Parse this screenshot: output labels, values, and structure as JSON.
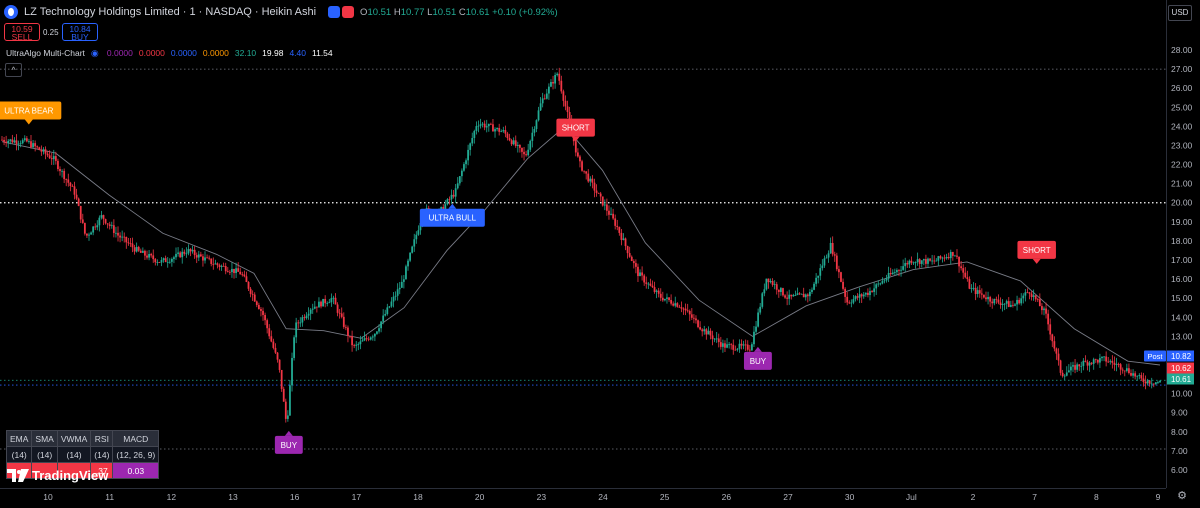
{
  "header": {
    "title": "LZ Technology Holdings Limited · 1 · NASDAQ · Heikin Ashi",
    "ohlc": [
      {
        "k": "O",
        "v": "10.51"
      },
      {
        "k": "H",
        "v": "10.77"
      },
      {
        "k": "L",
        "v": "10.51"
      },
      {
        "k": "C",
        "v": "10.61"
      },
      {
        "k": "",
        "v": "+0.10 (+0.92%)"
      }
    ]
  },
  "trade": {
    "sell_price": "10.59",
    "sell_label": "SELL",
    "spread": "0.25",
    "buy_price": "10.84",
    "buy_label": "BUY"
  },
  "indicator": {
    "name": "UltraAlgo Multi-Chart",
    "values": [
      {
        "text": "0.0000",
        "color": "#9c27b0"
      },
      {
        "text": "0.0000",
        "color": "#f23645"
      },
      {
        "text": "0.0000",
        "color": "#2962ff"
      },
      {
        "text": "0.0000",
        "color": "#ff9800"
      },
      {
        "text": "32.10",
        "color": "#22ab94"
      },
      {
        "text": "19.98",
        "color": "#ffffff"
      },
      {
        "text": "4.40",
        "color": "#2962ff"
      },
      {
        "text": "11.54",
        "color": "#ffffff"
      }
    ]
  },
  "currency": "USD",
  "table": {
    "headers": [
      "EMA",
      "SMA",
      "VWMA",
      "RSI",
      "MACD"
    ],
    "params": [
      "(14)",
      "(14)",
      "(14)",
      "(14)",
      "(12, 26, 9)"
    ],
    "values": [
      {
        "text": "",
        "bg": "#f23645"
      },
      {
        "text": "",
        "bg": "#f23645"
      },
      {
        "text": "",
        "bg": "#f23645"
      },
      {
        "text": ".37",
        "bg": "#f23645"
      },
      {
        "text": "0.03",
        "bg": "#9c27b0"
      }
    ]
  },
  "logo_text": "TradingView",
  "chart_data": {
    "type": "candlestick",
    "y_axis": {
      "range": [
        5.6,
        28.0
      ],
      "ticks": [
        "6.00",
        "7.00",
        "8.00",
        "9.00",
        "10.00",
        "11.00",
        "12.00",
        "13.00",
        "14.00",
        "15.00",
        "16.00",
        "17.00",
        "18.00",
        "19.00",
        "20.00",
        "21.00",
        "22.00",
        "23.00",
        "24.00",
        "25.00",
        "26.00",
        "27.00",
        "28.00"
      ]
    },
    "x_ticks": [
      "10",
      "11",
      "12",
      "13",
      "16",
      "17",
      "18",
      "20",
      "23",
      "24",
      "25",
      "26",
      "27",
      "30",
      "Jul",
      "2",
      "7",
      "8",
      "9"
    ],
    "price_path": [
      {
        "x": 0,
        "y": 23.3
      },
      {
        "x": 0.5,
        "y": 23.2
      },
      {
        "x": 1,
        "y": 22.3
      },
      {
        "x": 1.4,
        "y": 20.5
      },
      {
        "x": 1.6,
        "y": 18.2
      },
      {
        "x": 1.9,
        "y": 19.3
      },
      {
        "x": 2.2,
        "y": 18.3
      },
      {
        "x": 2.6,
        "y": 17.4
      },
      {
        "x": 3,
        "y": 16.9
      },
      {
        "x": 3.3,
        "y": 17.2
      },
      {
        "x": 3.5,
        "y": 17.5
      },
      {
        "x": 4,
        "y": 16.8
      },
      {
        "x": 4.5,
        "y": 16.3
      },
      {
        "x": 4.9,
        "y": 14.2
      },
      {
        "x": 5.2,
        "y": 11.5
      },
      {
        "x": 5.35,
        "y": 8.3
      },
      {
        "x": 5.5,
        "y": 13.5
      },
      {
        "x": 5.8,
        "y": 14.5
      },
      {
        "x": 6.2,
        "y": 15.0
      },
      {
        "x": 6.6,
        "y": 12.4
      },
      {
        "x": 7.0,
        "y": 13.2
      },
      {
        "x": 7.5,
        "y": 15.8
      },
      {
        "x": 7.9,
        "y": 19.6
      },
      {
        "x": 8.2,
        "y": 19.5
      },
      {
        "x": 8.5,
        "y": 20.6
      },
      {
        "x": 8.9,
        "y": 24.2
      },
      {
        "x": 9.4,
        "y": 23.7
      },
      {
        "x": 9.8,
        "y": 22.4
      },
      {
        "x": 10.1,
        "y": 25.3
      },
      {
        "x": 10.4,
        "y": 26.8
      },
      {
        "x": 10.8,
        "y": 22.1
      },
      {
        "x": 11.2,
        "y": 20.2
      },
      {
        "x": 11.5,
        "y": 18.8
      },
      {
        "x": 11.9,
        "y": 16.3
      },
      {
        "x": 12.3,
        "y": 15.1
      },
      {
        "x": 12.7,
        "y": 14.6
      },
      {
        "x": 13.1,
        "y": 13.4
      },
      {
        "x": 13.5,
        "y": 12.5
      },
      {
        "x": 14.0,
        "y": 12.4
      },
      {
        "x": 14.3,
        "y": 16.1
      },
      {
        "x": 14.7,
        "y": 15.0
      },
      {
        "x": 15.1,
        "y": 15.2
      },
      {
        "x": 15.5,
        "y": 17.8
      },
      {
        "x": 15.8,
        "y": 14.8
      },
      {
        "x": 16.2,
        "y": 15.3
      },
      {
        "x": 16.6,
        "y": 16.2
      },
      {
        "x": 17.0,
        "y": 17.0
      },
      {
        "x": 17.4,
        "y": 16.9
      },
      {
        "x": 17.8,
        "y": 17.4
      },
      {
        "x": 18.1,
        "y": 15.5
      },
      {
        "x": 18.5,
        "y": 14.9
      },
      {
        "x": 18.9,
        "y": 14.6
      },
      {
        "x": 19.2,
        "y": 15.4
      },
      {
        "x": 19.5,
        "y": 14.2
      },
      {
        "x": 19.8,
        "y": 11.0
      },
      {
        "x": 20.2,
        "y": 11.6
      },
      {
        "x": 20.6,
        "y": 11.8
      },
      {
        "x": 21.0,
        "y": 11.3
      },
      {
        "x": 21.3,
        "y": 10.7
      },
      {
        "x": 21.6,
        "y": 10.6
      }
    ],
    "moving_average": [
      {
        "x": 0,
        "y": 23.2
      },
      {
        "x": 1,
        "y": 22.6
      },
      {
        "x": 2,
        "y": 20.4
      },
      {
        "x": 3,
        "y": 18.4
      },
      {
        "x": 4,
        "y": 17.3
      },
      {
        "x": 4.7,
        "y": 16.3
      },
      {
        "x": 5.3,
        "y": 13.4
      },
      {
        "x": 6,
        "y": 13.3
      },
      {
        "x": 6.7,
        "y": 12.9
      },
      {
        "x": 7.5,
        "y": 14.5
      },
      {
        "x": 8.3,
        "y": 17.5
      },
      {
        "x": 9,
        "y": 19.6
      },
      {
        "x": 9.8,
        "y": 22.3
      },
      {
        "x": 10.5,
        "y": 24.0
      },
      {
        "x": 11.2,
        "y": 21.7
      },
      {
        "x": 12,
        "y": 17.9
      },
      {
        "x": 13,
        "y": 14.9
      },
      {
        "x": 14,
        "y": 13.0
      },
      {
        "x": 15,
        "y": 14.6
      },
      {
        "x": 16,
        "y": 15.6
      },
      {
        "x": 17,
        "y": 16.5
      },
      {
        "x": 18,
        "y": 16.9
      },
      {
        "x": 19,
        "y": 15.9
      },
      {
        "x": 20,
        "y": 13.4
      },
      {
        "x": 21,
        "y": 11.7
      },
      {
        "x": 21.6,
        "y": 11.5
      }
    ],
    "horizontal_lines": [
      {
        "price": 27.0,
        "style": "dotted",
        "color": "#787b86"
      },
      {
        "price": 20.0,
        "style": "dotted",
        "color": "#ffffff"
      },
      {
        "price": 10.7,
        "style": "dotted",
        "color": "#22ab94"
      },
      {
        "price": 10.45,
        "style": "dotted",
        "color": "#2962ff"
      },
      {
        "price": 7.1,
        "style": "dotted",
        "color": "#787b86"
      }
    ],
    "signals": [
      {
        "text": "ULTRA BEAR",
        "x": 0.5,
        "price": 23.0,
        "color": "#ff9800",
        "dir": "down"
      },
      {
        "text": "SHORT",
        "x": 10.7,
        "price": 22.1,
        "color": "#f23645",
        "dir": "down"
      },
      {
        "text": "ULTRA BULL",
        "x": 8.4,
        "price": 20.0,
        "color": "#2962ff",
        "dir": "up"
      },
      {
        "text": "BUY",
        "x": 5.35,
        "price": 8.1,
        "color": "#9c27b0",
        "dir": "up"
      },
      {
        "text": "BUY",
        "x": 14.1,
        "price": 12.5,
        "color": "#9c27b0",
        "dir": "up"
      },
      {
        "text": "SHORT",
        "x": 19.3,
        "price": 15.7,
        "color": "#f23645",
        "dir": "down"
      }
    ],
    "price_labels": [
      {
        "text": "Post",
        "price": 10.82,
        "color": "#2962ff",
        "value": "10.82"
      },
      {
        "text": "",
        "price": 10.62,
        "color": "#f23645",
        "value": "10.62"
      },
      {
        "text": "",
        "price": 10.61,
        "color": "#22ab94",
        "value": "10.61"
      }
    ]
  }
}
